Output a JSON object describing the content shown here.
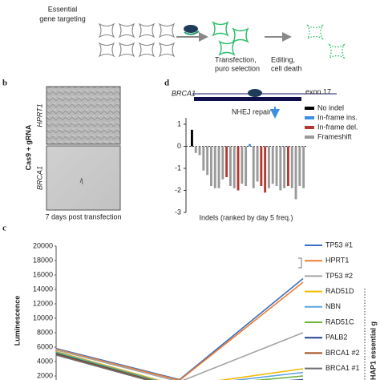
{
  "panels": {
    "a": {
      "left_label": [
        "Essential",
        "gene targeting"
      ],
      "step1": [
        "Transfection,",
        "puro selection"
      ],
      "step2": [
        "Editing,",
        "cell death"
      ]
    },
    "b": {
      "label": "b",
      "row_title": "Cas9 + gRNA",
      "rows": [
        "HPRT1",
        "BRCA1"
      ],
      "caption": "7 days post transfection"
    }
  },
  "chart_data": [
    {
      "type": "bar",
      "panel_label": "d",
      "gene": "BRCA1",
      "exon": "exon 17",
      "annotation": "NHEJ repair",
      "x_label": "Indels (ranked by day 5 freq.)",
      "ylim": [
        -3,
        1
      ],
      "yticks": [
        1,
        0,
        -1,
        -2,
        -3
      ],
      "legend": "top-right",
      "series": [
        {
          "name": "No indel",
          "color": "#000000",
          "values": [
            0.75,
            null,
            null,
            null,
            null,
            null,
            null,
            null,
            null,
            null,
            null,
            null,
            null,
            null,
            null,
            null,
            null,
            null,
            null,
            null,
            null,
            null,
            null,
            null,
            null,
            null,
            null,
            null,
            null,
            null
          ]
        },
        {
          "name": "In-frame ins.",
          "color": "#3b8fe0",
          "values": [
            null,
            null,
            null,
            null,
            null,
            null,
            null,
            null,
            null,
            null,
            null,
            null,
            null,
            null,
            null,
            0.1,
            null,
            null,
            null,
            null,
            null,
            null,
            null,
            null,
            null,
            null,
            null,
            null,
            null,
            null
          ]
        },
        {
          "name": "In-frame del.",
          "color": "#b03a32",
          "values": [
            null,
            null,
            null,
            null,
            null,
            null,
            null,
            null,
            null,
            -1.4,
            null,
            null,
            -2.0,
            null,
            null,
            null,
            null,
            null,
            -1.8,
            -2.1,
            null,
            null,
            null,
            null,
            null,
            -1.8,
            null,
            null,
            null,
            null
          ]
        },
        {
          "name": "Frameshift",
          "color": "#9a9a9a",
          "values": [
            null,
            -0.3,
            -0.4,
            -1.1,
            -1.3,
            -1.8,
            -1.9,
            -1.9,
            -1.5,
            null,
            -1.8,
            -1.9,
            null,
            -1.7,
            -1.8,
            null,
            -1.9,
            -1.6,
            null,
            null,
            -1.9,
            -1.7,
            -1.8,
            -2.0,
            -1.9,
            null,
            -1.9,
            -2.4,
            -1.8,
            -1.9
          ]
        }
      ]
    },
    {
      "type": "line",
      "panel_label": "c",
      "y_label": "Luminescence",
      "side_label": "HAP1 essential g",
      "ylim": [
        0,
        20000
      ],
      "yticks": [
        2000,
        4000,
        6000,
        8000,
        10000,
        12000,
        14000,
        16000,
        18000,
        20000
      ],
      "categories": [
        null,
        null,
        null
      ],
      "legend": "right",
      "series": [
        {
          "name": "TP53 #1",
          "color": "#3a6fc4",
          "values": [
            5800,
            1500,
            15500
          ]
        },
        {
          "name": "HPRT1",
          "color": "#ee7d31",
          "values": [
            5700,
            1400,
            15000
          ]
        },
        {
          "name": "TP53 #2",
          "color": "#a5a5a5",
          "values": [
            5600,
            1200,
            8000
          ]
        },
        {
          "name": "RAD51D",
          "color": "#f2b800",
          "values": [
            5400,
            600,
            3000
          ]
        },
        {
          "name": "NBN",
          "color": "#5ba3e0",
          "values": [
            5300,
            500,
            2500
          ]
        },
        {
          "name": "RAD51C",
          "color": "#6cb33f",
          "values": [
            5200,
            400,
            2000
          ]
        },
        {
          "name": "PALB2",
          "color": "#24408e",
          "values": [
            5100,
            300,
            1500
          ]
        },
        {
          "name": "BRCA1 #2",
          "color": "#a24b1c",
          "values": [
            5000,
            300,
            1200
          ]
        },
        {
          "name": "BRCA1 #1",
          "color": "#6e6e6e",
          "values": [
            4900,
            200,
            1000
          ]
        }
      ]
    }
  ]
}
